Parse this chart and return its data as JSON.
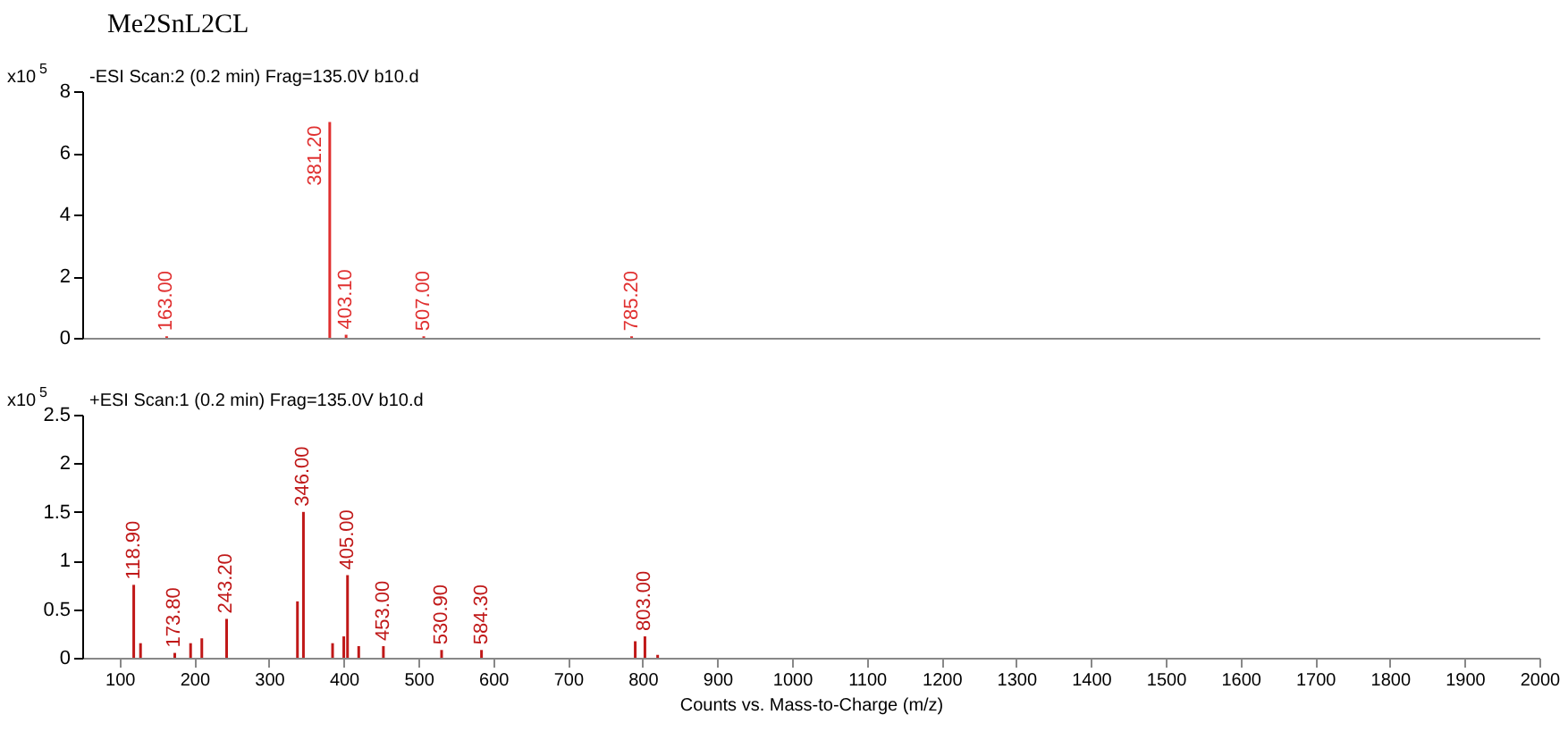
{
  "chart_data": [
    {
      "type": "bar",
      "title": "Me2SnL2CL",
      "ylabel": "x10$^{5}$",
      "xlim": [
        50,
        2000
      ],
      "ylim": [
        0,
        8
      ],
      "yticks": [
        0,
        2,
        4,
        6,
        8
      ],
      "tick_labels": "y",
      "annotations": [
        "-ESI Scan:2 (0.2 min) Frag=135.0V b10.d",
        {
          "text": "163.00",
          "x": 163,
          "y": 0.05
        },
        {
          "text": "381.20",
          "x": 381.2,
          "y": 7.0
        },
        {
          "text": "403.10",
          "x": 403.1,
          "y": 0.1
        },
        {
          "text": "507.00",
          "x": 507,
          "y": 0.05
        },
        {
          "text": "785.20",
          "x": 785.2,
          "y": 0.05
        }
      ],
      "series": [
        {
          "color": "#e03030",
          "x": [
            163,
            381.2,
            403.1,
            507,
            785.2
          ],
          "values": [
            0.05,
            7.0,
            0.1,
            0.05,
            0.05
          ]
        }
      ]
    },
    {
      "type": "bar",
      "ylabel": "x10$^{5}$",
      "xlabel": "Counts vs. Mass-to-Charge (m/z)",
      "xlim": [
        50,
        2000
      ],
      "xticks": [
        100,
        200,
        300,
        400,
        500,
        600,
        700,
        800,
        900,
        1000,
        1100,
        1200,
        1300,
        1400,
        1500,
        1600,
        1700,
        1800,
        1900,
        2000
      ],
      "ylim": [
        0,
        2.5
      ],
      "yticks": [
        0,
        0.5,
        1,
        1.5,
        2,
        2.5
      ],
      "annotations": [
        "+ESI Scan:1 (0.2 min) Frag=135.0V b10.d",
        {
          "text": "118.90",
          "x": 118.9,
          "y": 0.75
        },
        {
          "text": "173.80",
          "x": 173.8,
          "y": 0.05
        },
        {
          "text": "243.20",
          "x": 243.2,
          "y": 0.4
        },
        {
          "text": "346.00",
          "x": 346,
          "y": 1.5
        },
        {
          "text": "405.00",
          "x": 405,
          "y": 0.85
        },
        {
          "text": "453.00",
          "x": 453,
          "y": 0.12
        },
        {
          "text": "530.90",
          "x": 530.9,
          "y": 0.08
        },
        {
          "text": "584.30",
          "x": 584.3,
          "y": 0.08
        },
        {
          "text": "803.00",
          "x": 803,
          "y": 0.22
        }
      ],
      "series": [
        {
          "color": "#c01818",
          "x": [
            118.9,
            128,
            173.8,
            195,
            210,
            243.2,
            338,
            346,
            385,
            400,
            405,
            420,
            453,
            530.9,
            584.3,
            790,
            803,
            820
          ],
          "values": [
            0.75,
            0.15,
            0.05,
            0.15,
            0.2,
            0.4,
            0.58,
            1.5,
            0.15,
            0.22,
            0.85,
            0.12,
            0.12,
            0.08,
            0.08,
            0.17,
            0.22,
            0.03
          ]
        }
      ]
    }
  ]
}
